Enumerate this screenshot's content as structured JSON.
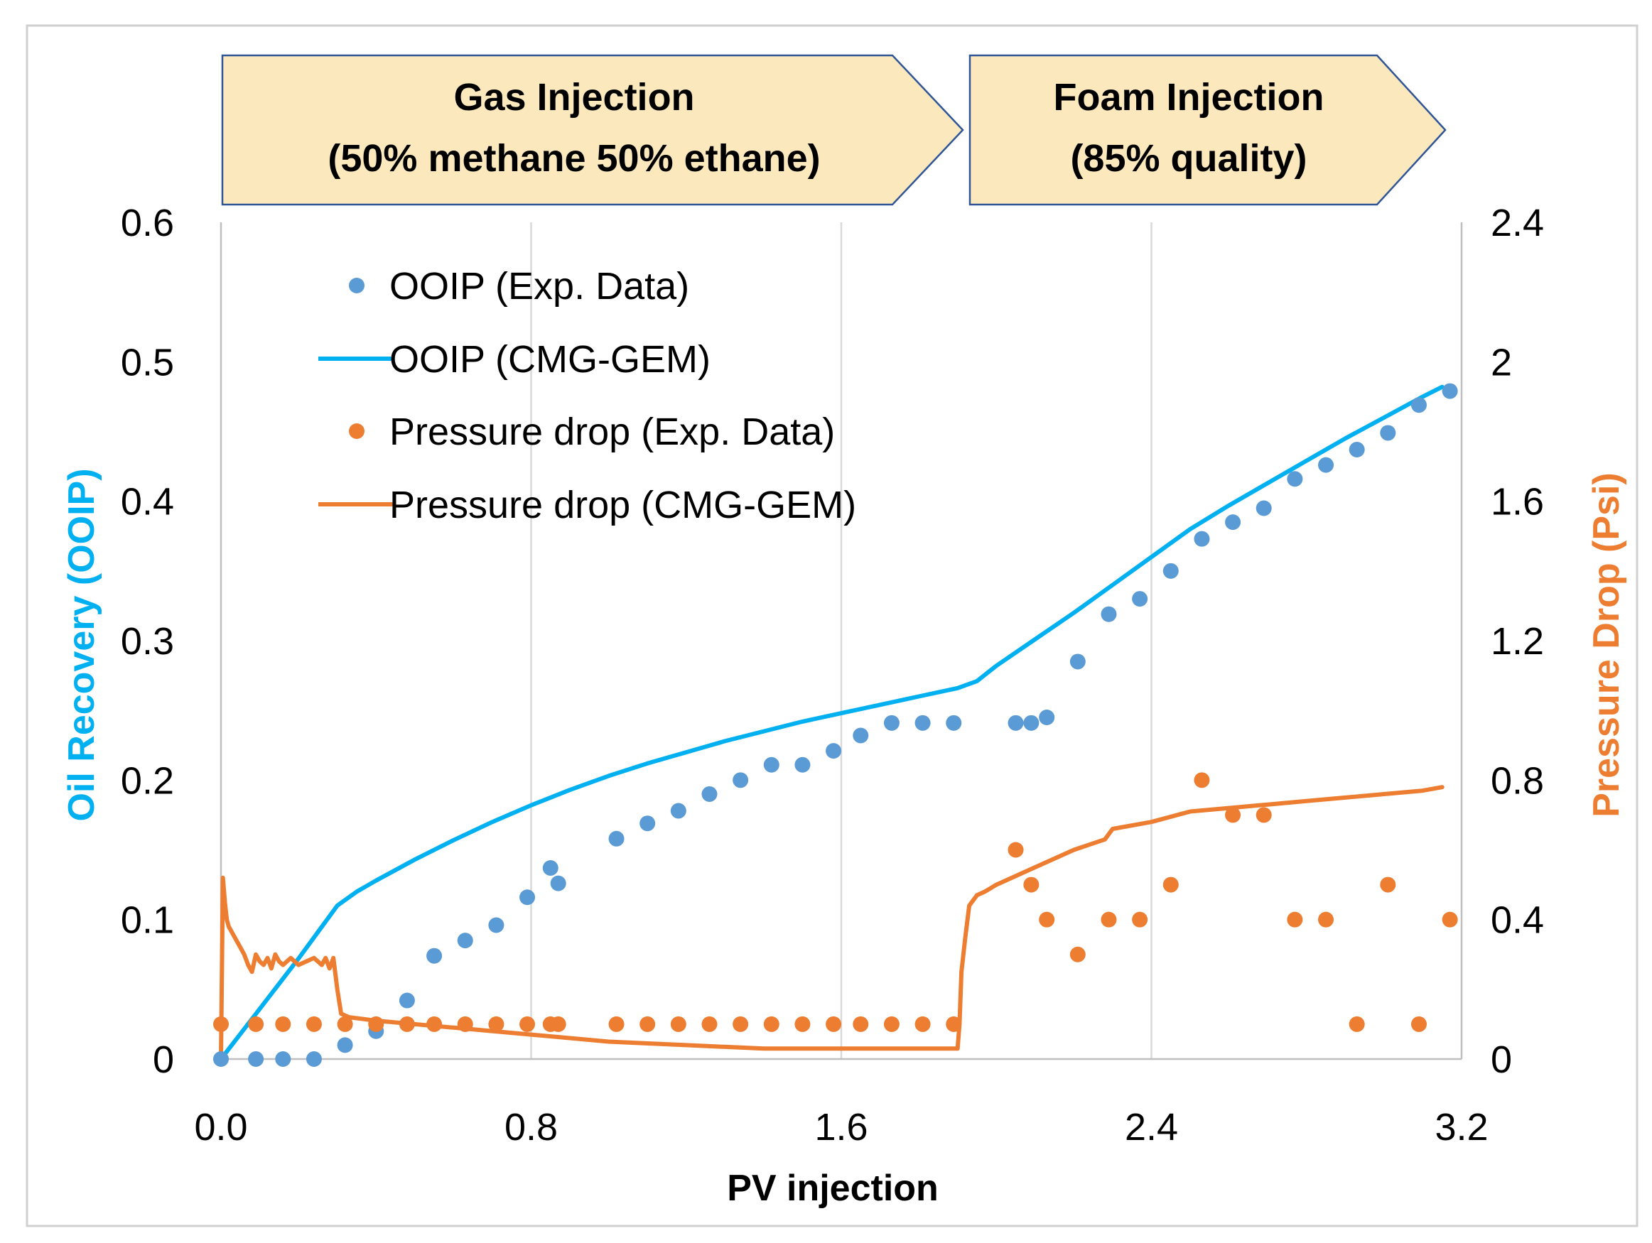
{
  "chart_data": {
    "type": "scatter+line",
    "xlabel": "PV injection",
    "ylabel_left": "Oil Recovery (OOIP)",
    "ylabel_right": "Pressure Drop (Psi)",
    "xlim": [
      0,
      3.2
    ],
    "ylim_left": [
      0,
      0.6
    ],
    "ylim_right": [
      0,
      2.4
    ],
    "x_ticks": [
      0,
      0.8,
      1.6,
      2.4,
      3.2
    ],
    "x_tick_labels": [
      "0.0",
      "0.8",
      "1.6",
      "2.4",
      "3.2"
    ],
    "y_left_ticks": [
      0,
      0.1,
      0.2,
      0.3,
      0.4,
      0.5,
      0.6
    ],
    "y_left_tick_labels": [
      "0",
      "0.1",
      "0.2",
      "0.3",
      "0.4",
      "0.5",
      "0.6"
    ],
    "y_right_ticks": [
      0,
      0.4,
      0.8,
      1.2,
      1.6,
      2.0,
      2.4
    ],
    "y_right_tick_labels": [
      "0",
      "0.4",
      "0.8",
      "1.2",
      "1.6",
      "2",
      "2.4"
    ],
    "grid": "vertical",
    "colors": {
      "ooip": "#00b0f0",
      "ooip_points": "#5b9bd5",
      "pressure": "#ed7d31",
      "banner_fill": "#fbe9bd",
      "banner_stroke": "#2f5597"
    },
    "banners": [
      {
        "line1": "Gas Injection",
        "line2": "(50% methane 50% ethane)"
      },
      {
        "line1": "Foam Injection",
        "line2": "(85% quality)"
      }
    ],
    "legend": {
      "placement": "top-left",
      "entries": [
        {
          "label": "OOIP (Exp. Data)",
          "kind": "marker",
          "series": "ooip_exp"
        },
        {
          "label": "OOIP (CMG-GEM)",
          "kind": "line",
          "series": "ooip_sim"
        },
        {
          "label": "Pressure drop (Exp. Data)",
          "kind": "marker",
          "series": "dp_exp"
        },
        {
          "label": "Pressure drop (CMG-GEM)",
          "kind": "line",
          "series": "dp_sim"
        }
      ]
    },
    "series": [
      {
        "name": "OOIP (Exp. Data)",
        "id": "ooip_exp",
        "axis": "left",
        "style": "marker",
        "x": [
          0.0,
          0.09,
          0.16,
          0.24,
          0.32,
          0.4,
          0.48,
          0.55,
          0.63,
          0.71,
          0.79,
          0.85,
          0.87,
          1.02,
          1.1,
          1.18,
          1.26,
          1.34,
          1.42,
          1.5,
          1.58,
          1.65,
          1.73,
          1.81,
          1.89,
          2.05,
          2.09,
          2.13,
          2.21,
          2.29,
          2.37,
          2.45,
          2.53,
          2.61,
          2.69,
          2.77,
          2.85,
          2.93,
          3.01,
          3.09,
          3.17
        ],
        "y": [
          0.0,
          0.0,
          0.0,
          0.0,
          0.01,
          0.02,
          0.042,
          0.074,
          0.085,
          0.096,
          0.116,
          0.137,
          0.126,
          0.158,
          0.169,
          0.178,
          0.19,
          0.2,
          0.211,
          0.211,
          0.221,
          0.232,
          0.241,
          0.241,
          0.241,
          0.241,
          0.241,
          0.245,
          0.285,
          0.319,
          0.33,
          0.35,
          0.373,
          0.385,
          0.395,
          0.416,
          0.426,
          0.437,
          0.449,
          0.469,
          0.479
        ]
      },
      {
        "name": "OOIP (CMG-GEM)",
        "id": "ooip_sim",
        "axis": "left",
        "style": "line",
        "x": [
          0.0,
          0.05,
          0.1,
          0.15,
          0.2,
          0.25,
          0.3,
          0.35,
          0.4,
          0.5,
          0.6,
          0.7,
          0.8,
          0.9,
          1.0,
          1.1,
          1.2,
          1.3,
          1.4,
          1.5,
          1.6,
          1.7,
          1.8,
          1.9,
          1.95,
          2.0,
          2.1,
          2.2,
          2.3,
          2.4,
          2.5,
          2.6,
          2.7,
          2.8,
          2.9,
          3.0,
          3.1,
          3.15
        ],
        "y": [
          0.0,
          0.018,
          0.036,
          0.054,
          0.072,
          0.091,
          0.11,
          0.12,
          0.128,
          0.143,
          0.157,
          0.17,
          0.182,
          0.193,
          0.203,
          0.212,
          0.22,
          0.228,
          0.235,
          0.242,
          0.248,
          0.254,
          0.26,
          0.266,
          0.271,
          0.282,
          0.301,
          0.32,
          0.34,
          0.36,
          0.38,
          0.397,
          0.413,
          0.429,
          0.445,
          0.46,
          0.475,
          0.482
        ]
      },
      {
        "name": "Pressure drop (Exp. Data)",
        "id": "dp_exp",
        "axis": "right",
        "style": "marker",
        "x": [
          0.0,
          0.09,
          0.16,
          0.24,
          0.32,
          0.4,
          0.48,
          0.55,
          0.63,
          0.71,
          0.79,
          0.85,
          0.87,
          1.02,
          1.1,
          1.18,
          1.26,
          1.34,
          1.42,
          1.5,
          1.58,
          1.65,
          1.73,
          1.81,
          1.89,
          2.05,
          2.09,
          2.13,
          2.21,
          2.29,
          2.37,
          2.45,
          2.53,
          2.61,
          2.69,
          2.77,
          2.85,
          2.93,
          3.01,
          3.09,
          3.17
        ],
        "y": [
          0.1,
          0.1,
          0.1,
          0.1,
          0.1,
          0.1,
          0.1,
          0.1,
          0.1,
          0.1,
          0.1,
          0.1,
          0.1,
          0.1,
          0.1,
          0.1,
          0.1,
          0.1,
          0.1,
          0.1,
          0.1,
          0.1,
          0.1,
          0.1,
          0.1,
          0.6,
          0.5,
          0.4,
          0.3,
          0.4,
          0.4,
          0.5,
          0.8,
          0.7,
          0.7,
          0.4,
          0.4,
          0.1,
          0.5,
          0.1,
          0.4
        ]
      },
      {
        "name": "Pressure drop (CMG-GEM)",
        "id": "dp_sim",
        "axis": "right",
        "style": "line",
        "x": [
          0.0,
          0.005,
          0.01,
          0.015,
          0.02,
          0.03,
          0.04,
          0.05,
          0.06,
          0.07,
          0.08,
          0.09,
          0.1,
          0.11,
          0.12,
          0.13,
          0.14,
          0.15,
          0.16,
          0.18,
          0.2,
          0.22,
          0.24,
          0.26,
          0.27,
          0.28,
          0.29,
          0.3,
          0.31,
          0.33,
          0.4,
          0.6,
          0.8,
          1.0,
          1.2,
          1.4,
          1.6,
          1.8,
          1.9,
          1.905,
          1.91,
          1.92,
          1.93,
          1.95,
          1.97,
          2.0,
          2.1,
          2.2,
          2.28,
          2.3,
          2.4,
          2.5,
          2.6,
          2.7,
          2.8,
          2.9,
          3.0,
          3.1,
          3.15
        ],
        "y": [
          0.0,
          0.52,
          0.45,
          0.4,
          0.38,
          0.36,
          0.34,
          0.32,
          0.3,
          0.27,
          0.25,
          0.3,
          0.28,
          0.27,
          0.29,
          0.26,
          0.3,
          0.28,
          0.27,
          0.29,
          0.27,
          0.28,
          0.29,
          0.27,
          0.29,
          0.26,
          0.29,
          0.2,
          0.13,
          0.12,
          0.11,
          0.09,
          0.07,
          0.05,
          0.04,
          0.03,
          0.03,
          0.03,
          0.03,
          0.1,
          0.25,
          0.35,
          0.44,
          0.47,
          0.48,
          0.5,
          0.55,
          0.6,
          0.63,
          0.66,
          0.68,
          0.71,
          0.72,
          0.73,
          0.74,
          0.75,
          0.76,
          0.77,
          0.78
        ]
      }
    ]
  }
}
